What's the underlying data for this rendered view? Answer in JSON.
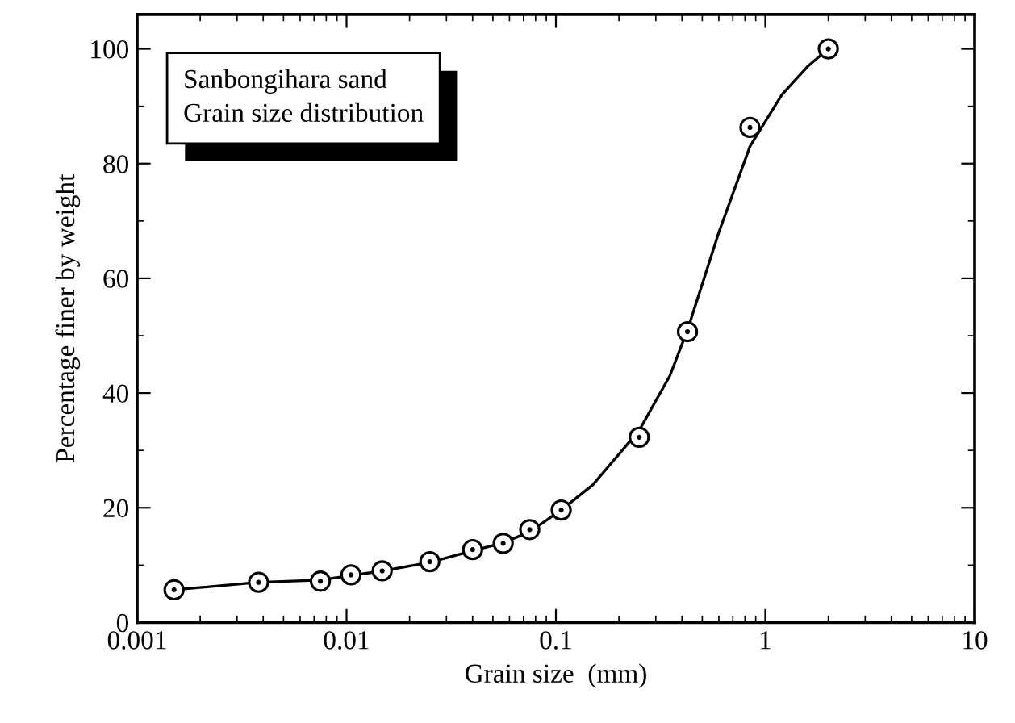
{
  "chart_data": {
    "type": "scatter",
    "xlabel": "Grain size  (mm)",
    "ylabel": "Percentage finer by weight",
    "annotations": [
      "Sanbongihara sand\nGrain size distribution"
    ],
    "log": "x",
    "xlim": [
      0.001,
      10
    ],
    "xticks": [
      0.001,
      0.01,
      0.1,
      1,
      10
    ],
    "ylim": [
      0,
      106
    ],
    "yticks": [
      0,
      20,
      40,
      60,
      80,
      100
    ],
    "grid": false,
    "legend": false,
    "series": [
      {
        "type": "line",
        "color": "#000000",
        "line_style": "solid",
        "x": [
          0.0015,
          0.0038,
          0.0075,
          0.0105,
          0.015,
          0.025,
          0.04,
          0.056,
          0.075,
          0.106,
          0.15,
          0.25,
          0.35,
          0.425,
          0.5,
          0.6,
          0.845,
          1.2,
          1.6,
          2
        ],
        "values": [
          5.7,
          7.0,
          7.4,
          8.2,
          9.0,
          10.5,
          12.5,
          13.9,
          15.8,
          19.6,
          24.0,
          33.5,
          43,
          51,
          59,
          68,
          83,
          92,
          97,
          100
        ]
      },
      {
        "color": "#000000",
        "marker": "circle",
        "x": [
          0.0015,
          0.0038,
          0.0075,
          0.0105,
          0.0148,
          0.025,
          0.04,
          0.056,
          0.075,
          0.106,
          0.25,
          0.425,
          0.845,
          2
        ],
        "values": [
          5.7,
          7.0,
          7.2,
          8.3,
          9.0,
          10.6,
          12.7,
          13.8,
          16.2,
          19.6,
          32.3,
          50.7,
          86.3,
          100
        ]
      }
    ]
  }
}
